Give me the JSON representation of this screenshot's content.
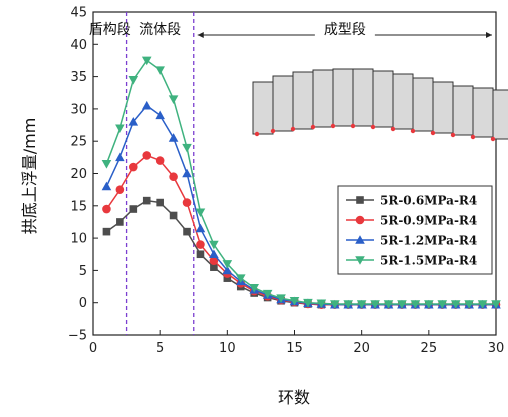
{
  "chart_data": {
    "type": "line",
    "title": "",
    "xlabel": "环数",
    "ylabel": "拱底上浮量/mm",
    "xlim": [
      0,
      30
    ],
    "ylim": [
      -5,
      45
    ],
    "x_ticks": [
      0,
      5,
      10,
      15,
      20,
      25,
      30
    ],
    "y_ticks": [
      -5,
      0,
      5,
      10,
      15,
      20,
      25,
      30,
      35,
      40,
      45
    ],
    "grid": false,
    "legend_position": "middle-right",
    "regions": [
      {
        "label": "盾构段",
        "x_start": 0,
        "x_end": 2.5
      },
      {
        "label": "流体段",
        "x_start": 2.5,
        "x_end": 7.5
      },
      {
        "label": "成型段",
        "x_start": 7.5,
        "x_end": 30
      }
    ],
    "region_boundaries": [
      2.5,
      7.5
    ],
    "x": [
      1,
      2,
      3,
      4,
      5,
      6,
      7,
      8,
      9,
      10,
      11,
      12,
      13,
      14,
      15,
      16,
      17,
      18,
      19,
      20,
      21,
      22,
      23,
      24,
      25,
      26,
      27,
      28,
      29,
      30
    ],
    "series": [
      {
        "name": "5R-0.6MPa-R4",
        "color": "#4d4d4d",
        "marker": "square",
        "values": [
          11,
          12.5,
          14.5,
          15.8,
          15.5,
          13.5,
          11,
          7.5,
          5.5,
          3.8,
          2.5,
          1.5,
          0.8,
          0.3,
          0,
          -0.2,
          -0.3,
          -0.3,
          -0.3,
          -0.3,
          -0.3,
          -0.3,
          -0.3,
          -0.3,
          -0.3,
          -0.3,
          -0.3,
          -0.3,
          -0.3,
          -0.3
        ]
      },
      {
        "name": "5R-0.9MPa-R4",
        "color": "#e8383d",
        "marker": "circle",
        "values": [
          14.5,
          17.5,
          21,
          22.8,
          22,
          19.5,
          15.5,
          9,
          6.5,
          4.5,
          3,
          1.8,
          1,
          0.4,
          0.1,
          -0.2,
          -0.3,
          -0.3,
          -0.3,
          -0.3,
          -0.3,
          -0.3,
          -0.3,
          -0.3,
          -0.3,
          -0.3,
          -0.3,
          -0.3,
          -0.3,
          -0.3
        ]
      },
      {
        "name": "5R-1.2MPa-R4",
        "color": "#2a5fc8",
        "marker": "triangle-up",
        "values": [
          18,
          22.5,
          28,
          30.5,
          29,
          25.5,
          20,
          11.5,
          7.5,
          5,
          3.3,
          2,
          1.2,
          0.5,
          0.2,
          -0.1,
          -0.2,
          -0.3,
          -0.3,
          -0.3,
          -0.3,
          -0.3,
          -0.3,
          -0.3,
          -0.3,
          -0.3,
          -0.3,
          -0.3,
          -0.3,
          -0.3
        ]
      },
      {
        "name": "5R-1.5MPa-R4",
        "color": "#3fb27f",
        "marker": "triangle-down",
        "values": [
          21.5,
          27,
          34.5,
          37.5,
          36,
          31.5,
          24,
          14,
          9,
          6,
          3.8,
          2.3,
          1.4,
          0.7,
          0.3,
          0,
          -0.1,
          -0.2,
          -0.2,
          -0.2,
          -0.2,
          -0.2,
          -0.2,
          -0.2,
          -0.2,
          -0.2,
          -0.2,
          -0.2,
          -0.2,
          -0.2
        ]
      }
    ]
  }
}
